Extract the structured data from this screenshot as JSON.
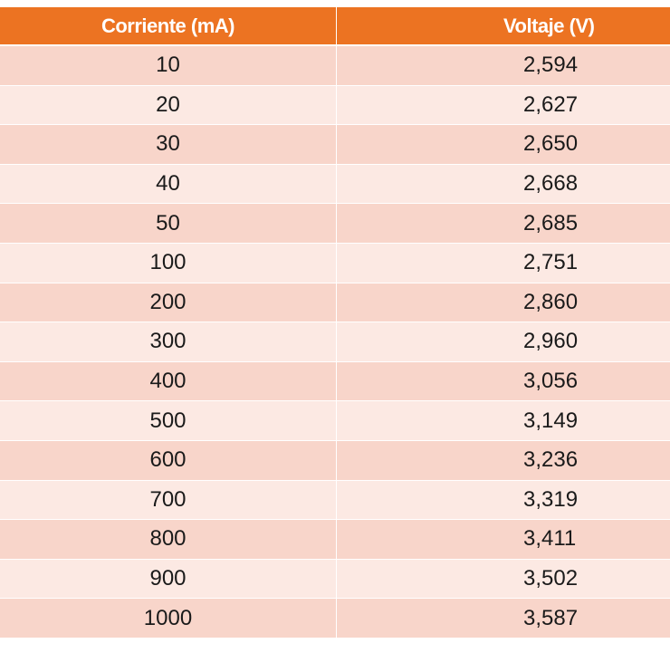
{
  "chart_data": {
    "type": "table",
    "columns": [
      "Corriente (mA)",
      "Voltaje (V)"
    ],
    "rows": [
      [
        "10",
        "2,594"
      ],
      [
        "20",
        "2,627"
      ],
      [
        "30",
        "2,650"
      ],
      [
        "40",
        "2,668"
      ],
      [
        "50",
        "2,685"
      ],
      [
        "100",
        "2,751"
      ],
      [
        "200",
        "2,860"
      ],
      [
        "300",
        "2,960"
      ],
      [
        "400",
        "3,056"
      ],
      [
        "500",
        "3,149"
      ],
      [
        "600",
        "3,236"
      ],
      [
        "700",
        "3,319"
      ],
      [
        "800",
        "3,411"
      ],
      [
        "900",
        "3,502"
      ],
      [
        "1000",
        "3,587"
      ]
    ],
    "colors": {
      "header_bg": "#ec7322",
      "row_dark": "#f8d5ca",
      "row_light": "#fce9e3"
    }
  }
}
